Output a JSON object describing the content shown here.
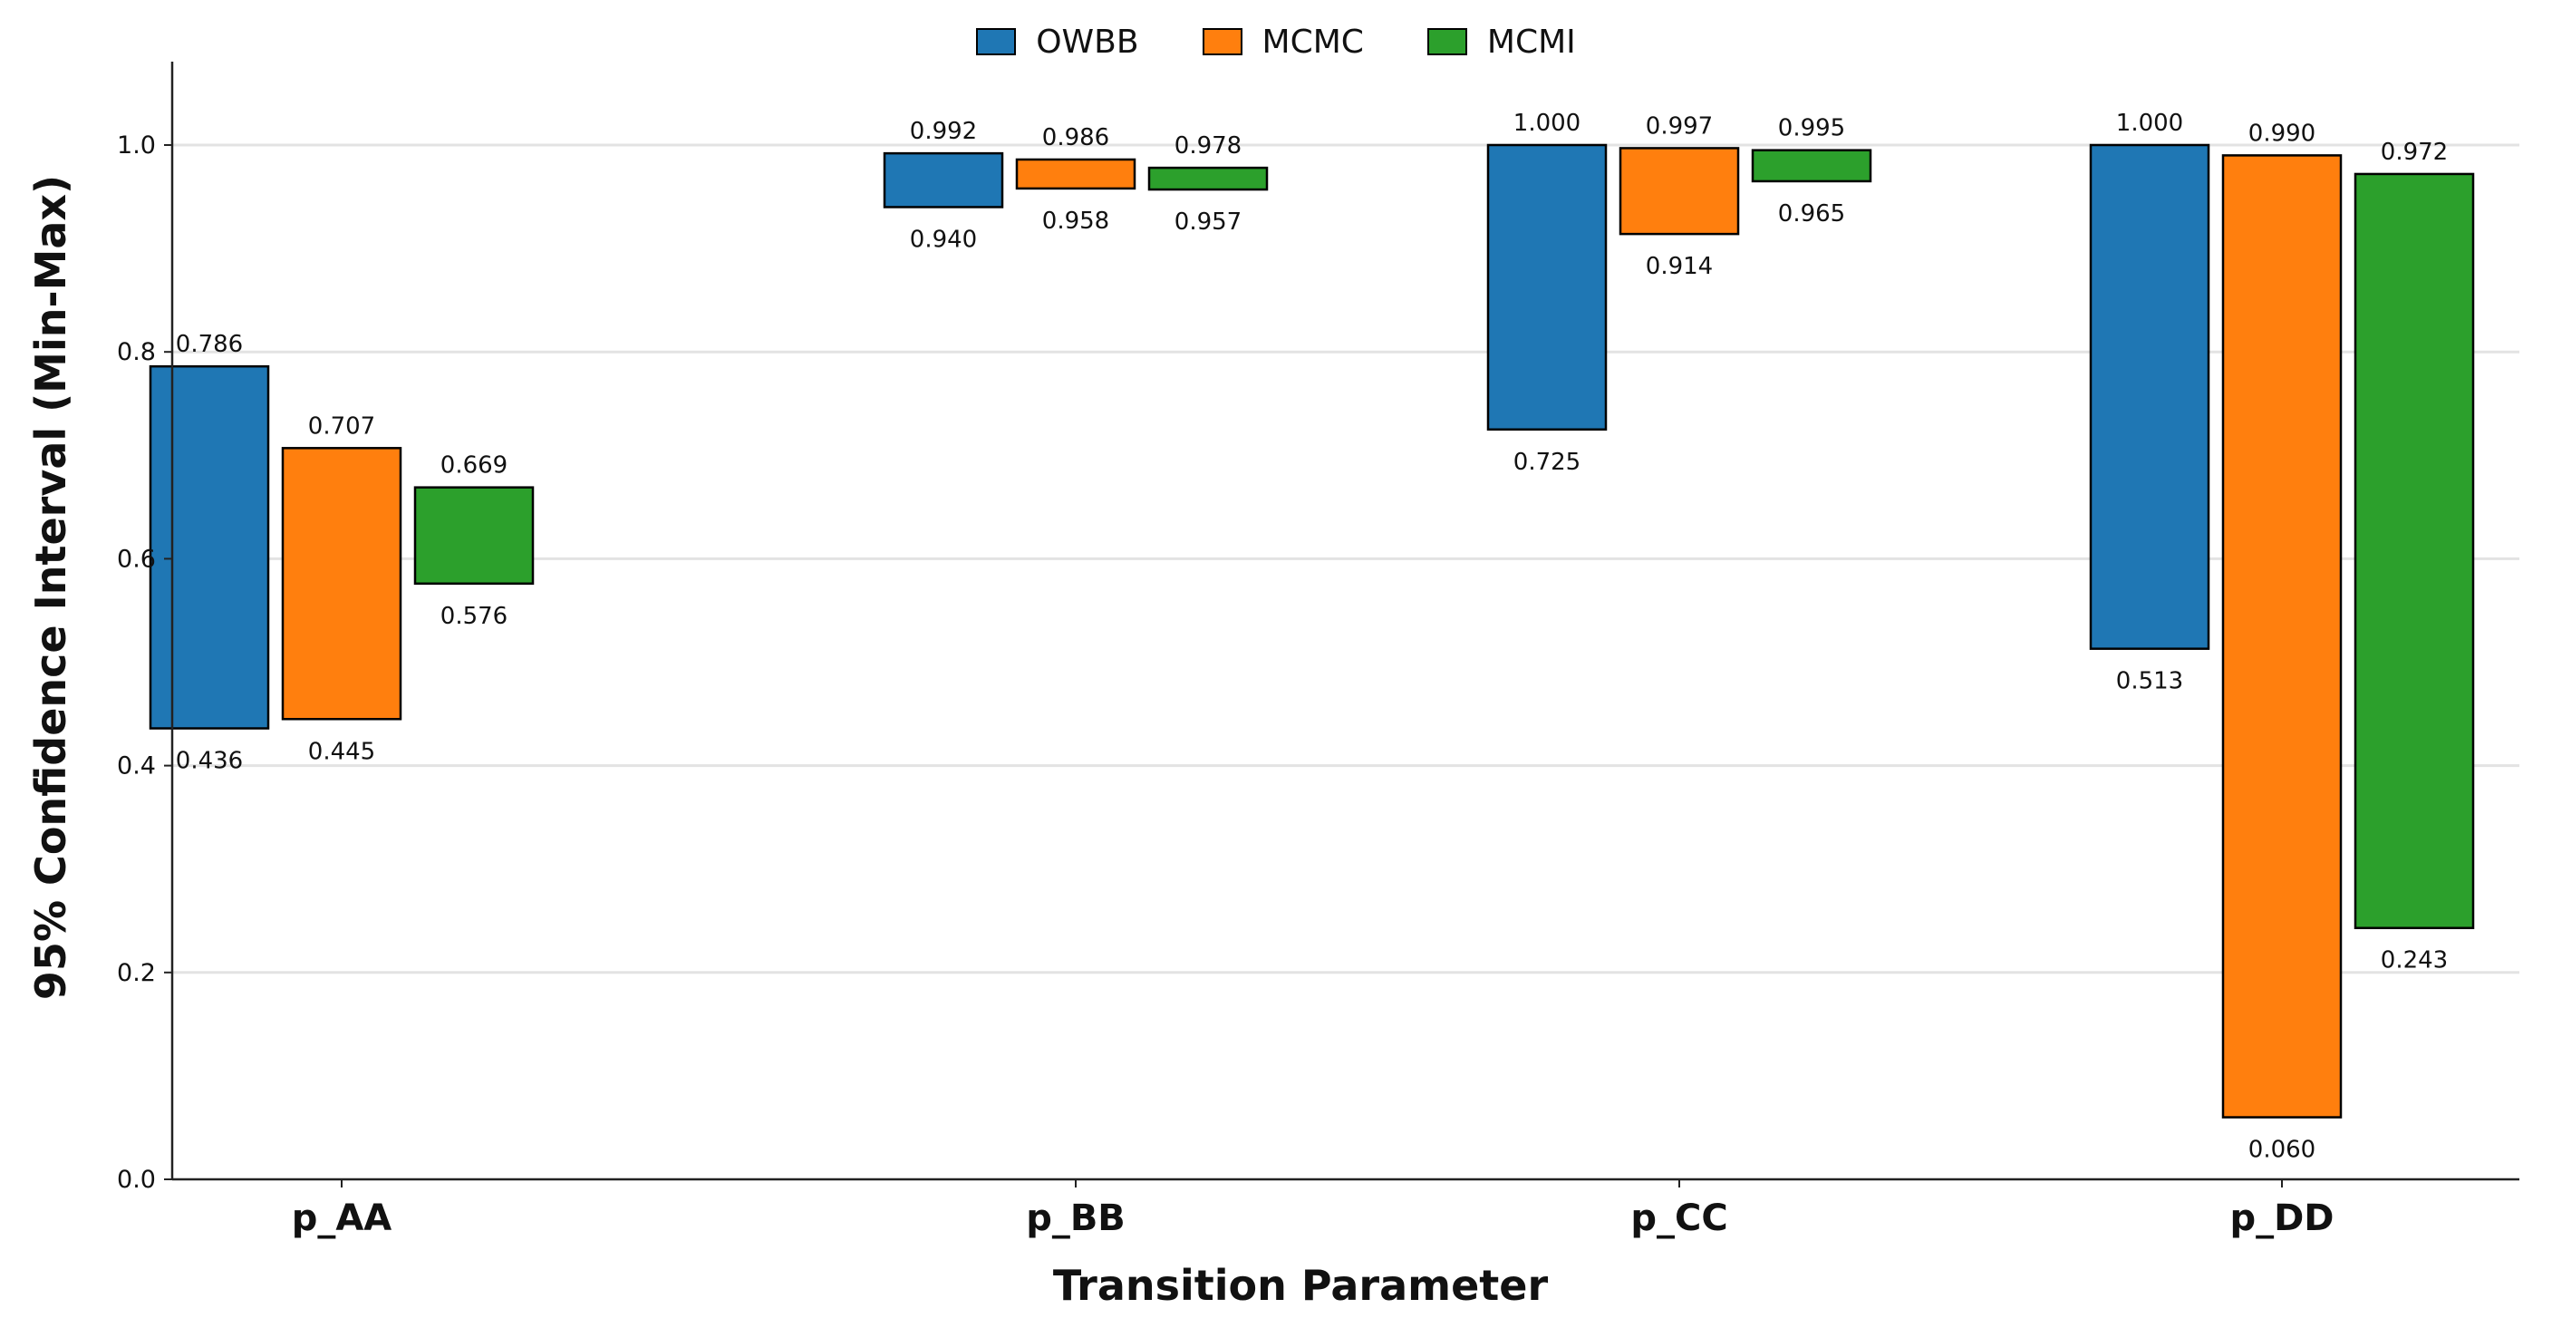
{
  "chart_data": {
    "type": "bar",
    "subtype": "floating-range",
    "categories": [
      "p_AA",
      "p_BB",
      "p_CC",
      "p_DD"
    ],
    "series": [
      {
        "name": "OWBB",
        "color": "#1f77b4",
        "min": [
          0.436,
          0.94,
          0.725,
          0.513
        ],
        "max": [
          0.786,
          0.992,
          1.0,
          1.0
        ]
      },
      {
        "name": "MCMC",
        "color": "#ff7f0e",
        "min": [
          0.445,
          0.958,
          0.914,
          0.06
        ],
        "max": [
          0.707,
          0.986,
          0.997,
          0.99
        ]
      },
      {
        "name": "MCMI",
        "color": "#2ca02c",
        "min": [
          0.576,
          0.957,
          0.965,
          0.243
        ],
        "max": [
          0.669,
          0.978,
          0.995,
          0.972
        ]
      }
    ],
    "xlabel": "Transition Parameter",
    "ylabel": "95% Confidence Interval (Min-Max)",
    "ylim": [
      0,
      1.08
    ],
    "yticks": [
      "0.0",
      "0.2",
      "0.4",
      "0.6",
      "0.8",
      "1.0"
    ],
    "grid": "y",
    "legend": "top-center"
  }
}
